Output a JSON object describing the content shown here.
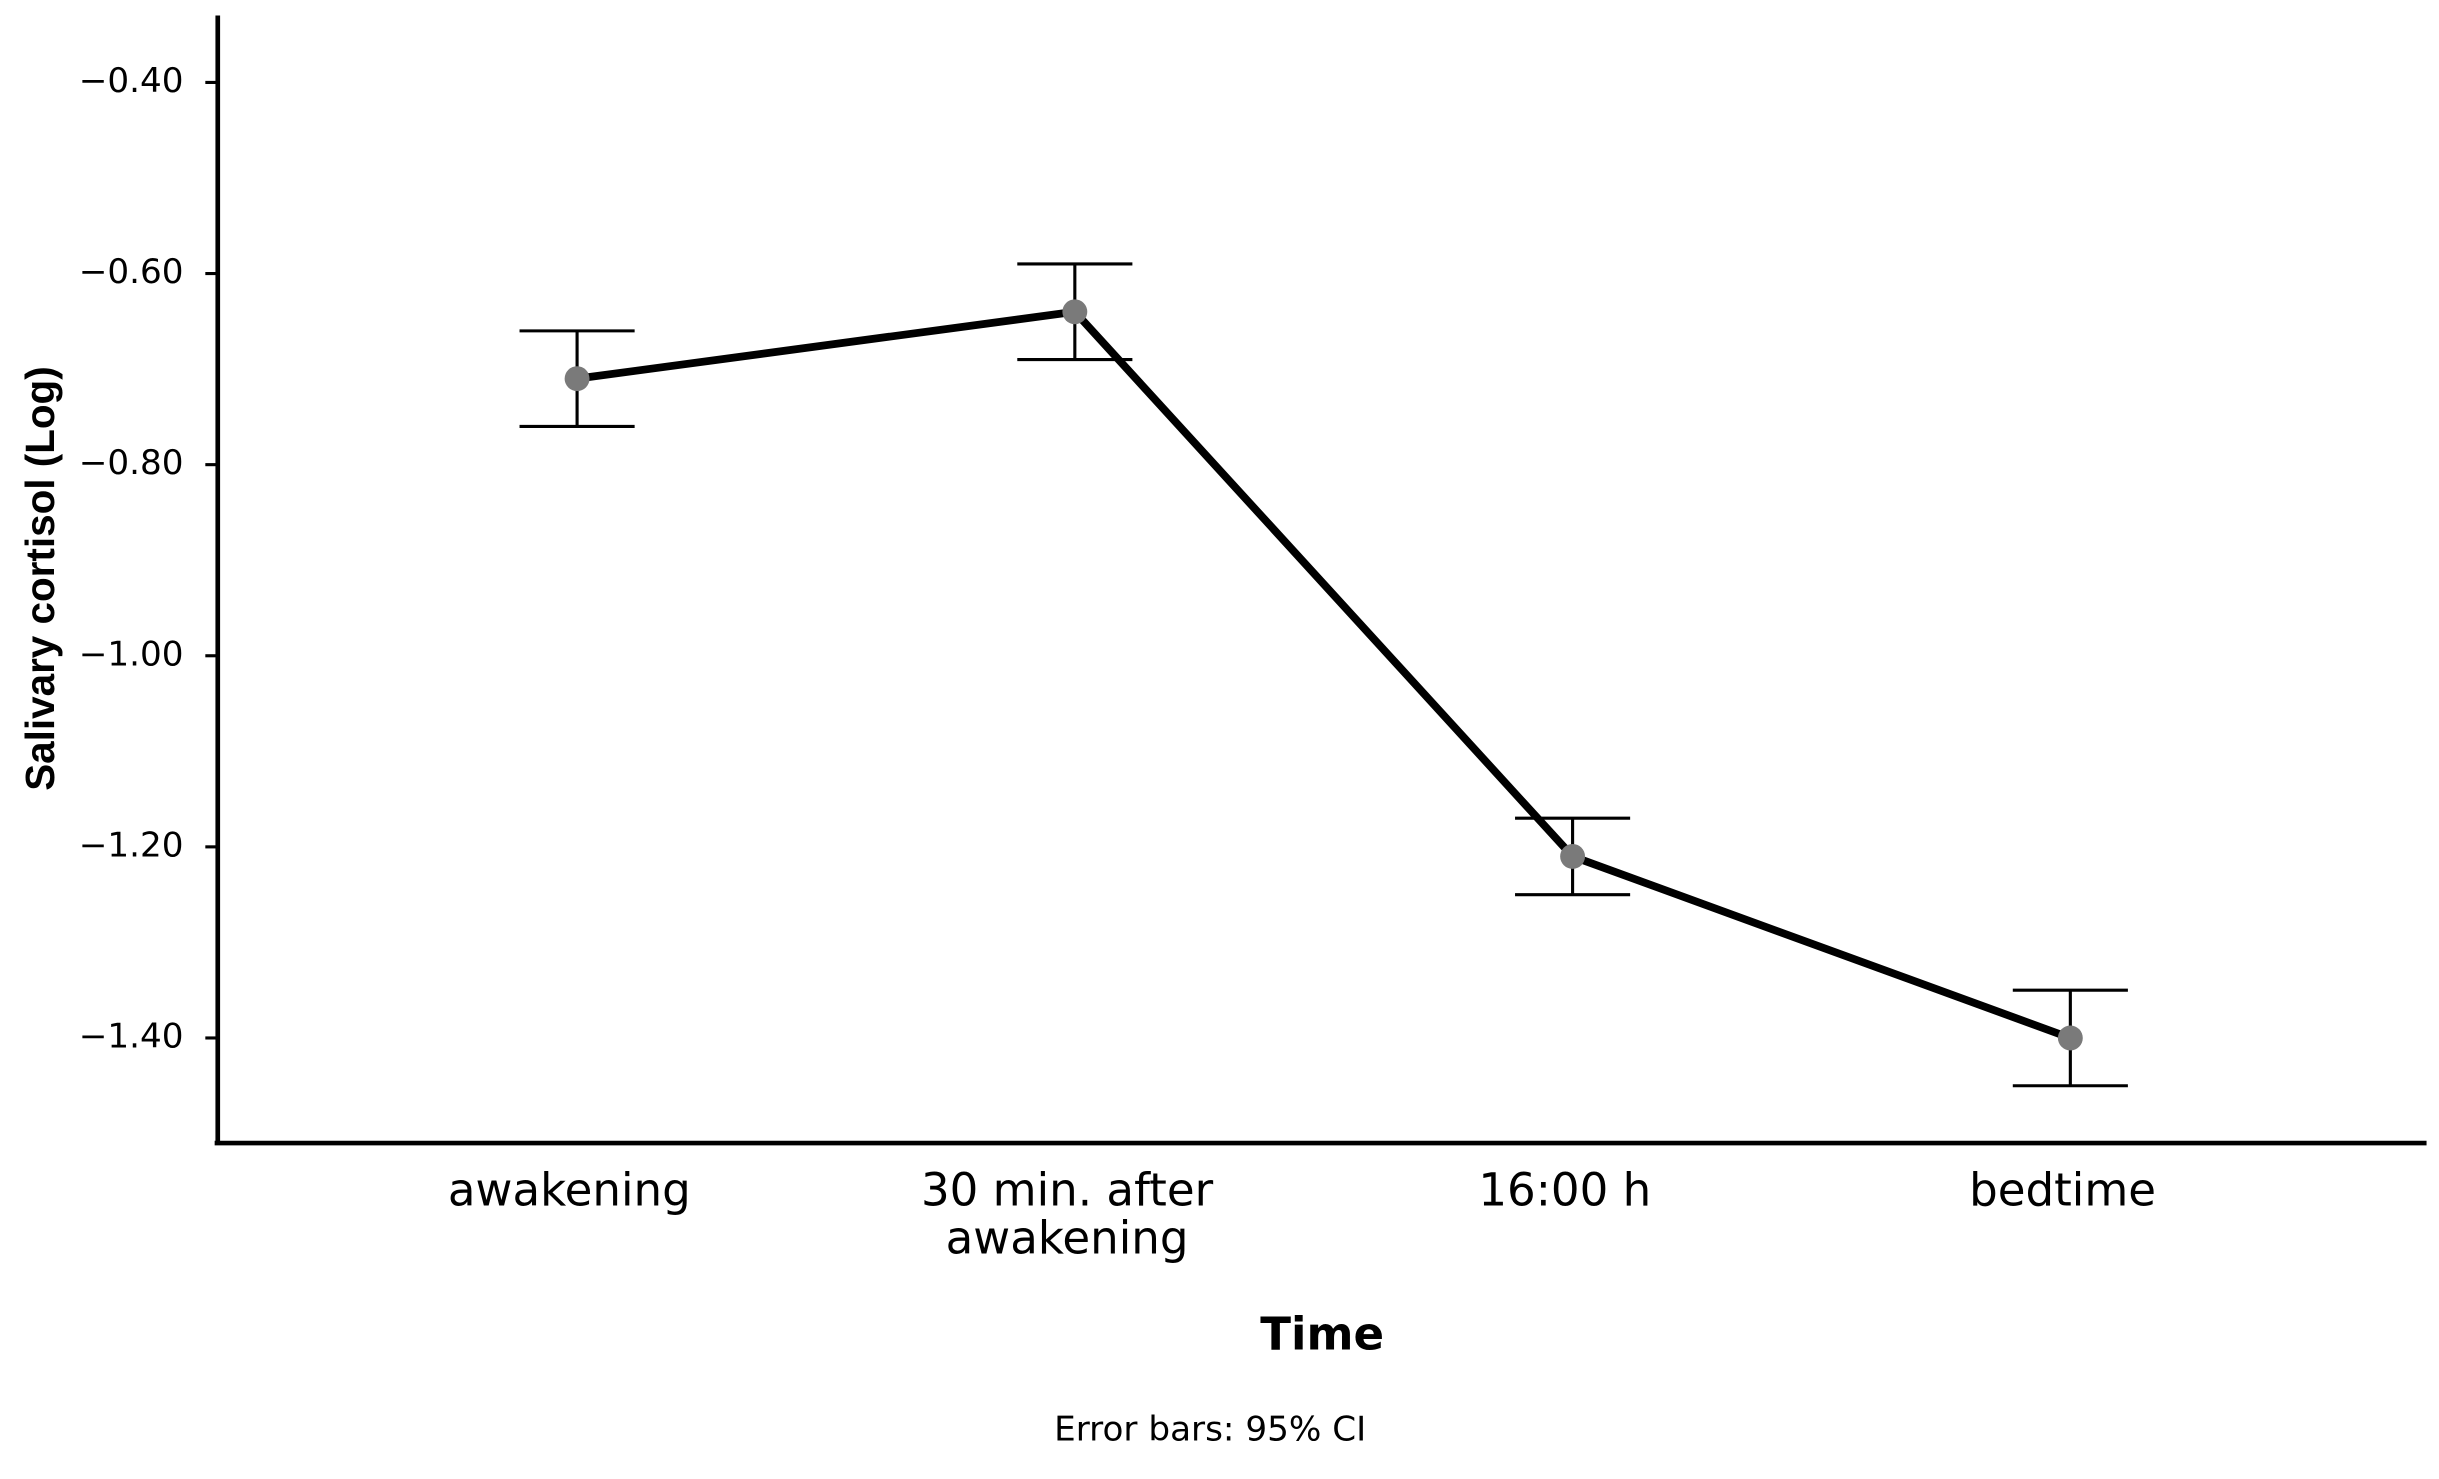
{
  "chart_data": {
    "type": "line",
    "y_label": "Salivary cortisol  (Log)",
    "x_label": "Time",
    "note": "Error bars: 95% CI",
    "categories": [
      "awakening",
      "30 min. after awakening",
      "16:00 h",
      "bedtime"
    ],
    "values": [
      -0.71,
      -0.64,
      -1.21,
      -1.4
    ],
    "errors": [
      0.05,
      0.05,
      0.04,
      0.05
    ],
    "color": "#000000",
    "point_color": "#7a7a7a",
    "ylim": [
      -1.51,
      -0.33
    ],
    "yticks": [
      {
        "value": -0.4,
        "label": "−0.40"
      },
      {
        "value": -0.6,
        "label": "−0.60"
      },
      {
        "value": -0.8,
        "label": "−0.80"
      },
      {
        "value": -1.0,
        "label": "−1.00"
      },
      {
        "value": -1.2,
        "label": "−1.20"
      },
      {
        "value": -1.4,
        "label": "−1.40"
      }
    ],
    "grid": false
  }
}
